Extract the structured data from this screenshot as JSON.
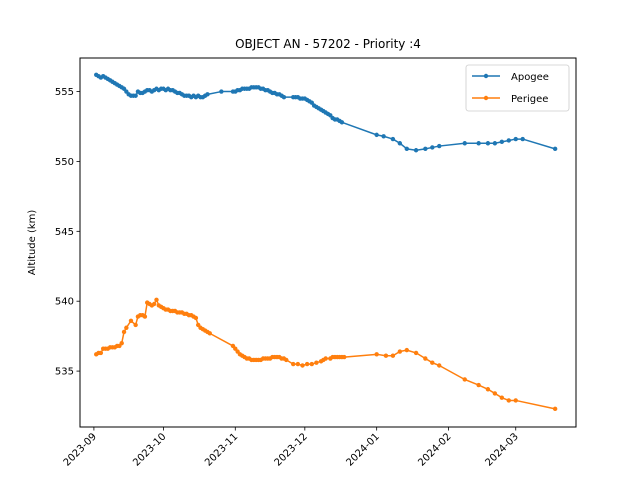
{
  "chart_data": {
    "type": "line",
    "title": "OBJECT AN - 57202 - Priority :4",
    "xlabel": "",
    "ylabel": "Altitude (km)",
    "xlim": [
      "2023-08-26",
      "2024-03-27"
    ],
    "ylim": [
      531.0,
      557.4
    ],
    "yticks": [
      535,
      540,
      545,
      550,
      555
    ],
    "xticks": [
      "2023-09-01",
      "2023-10-01",
      "2023-11-01",
      "2023-12-01",
      "2024-01-01",
      "2024-02-01",
      "2024-03-01"
    ],
    "xtick_labels": [
      "2023-09",
      "2023-10",
      "2023-11",
      "2023-12",
      "2024-01",
      "2024-02",
      "2024-03"
    ],
    "grid": false,
    "legend_position": "top-right",
    "series": [
      {
        "name": "Apogee",
        "color": "#1f77b4",
        "points": [
          [
            "2023-09-02",
            556.2
          ],
          [
            "2023-09-03",
            556.1
          ],
          [
            "2023-09-04",
            556.0
          ],
          [
            "2023-09-05",
            556.1
          ],
          [
            "2023-09-06",
            556.0
          ],
          [
            "2023-09-07",
            555.9
          ],
          [
            "2023-09-08",
            555.8
          ],
          [
            "2023-09-09",
            555.7
          ],
          [
            "2023-09-10",
            555.6
          ],
          [
            "2023-09-11",
            555.5
          ],
          [
            "2023-09-12",
            555.4
          ],
          [
            "2023-09-13",
            555.3
          ],
          [
            "2023-09-14",
            555.2
          ],
          [
            "2023-09-15",
            555.0
          ],
          [
            "2023-09-16",
            554.8
          ],
          [
            "2023-09-17",
            554.7
          ],
          [
            "2023-09-18",
            554.7
          ],
          [
            "2023-09-19",
            554.7
          ],
          [
            "2023-09-20",
            555.0
          ],
          [
            "2023-09-21",
            554.9
          ],
          [
            "2023-09-22",
            554.9
          ],
          [
            "2023-09-23",
            555.0
          ],
          [
            "2023-09-24",
            555.1
          ],
          [
            "2023-09-25",
            555.1
          ],
          [
            "2023-09-26",
            555.0
          ],
          [
            "2023-09-27",
            555.1
          ],
          [
            "2023-09-28",
            555.2
          ],
          [
            "2023-09-29",
            555.1
          ],
          [
            "2023-09-30",
            555.2
          ],
          [
            "2023-10-01",
            555.2
          ],
          [
            "2023-10-02",
            555.1
          ],
          [
            "2023-10-03",
            555.2
          ],
          [
            "2023-10-04",
            555.1
          ],
          [
            "2023-10-05",
            555.1
          ],
          [
            "2023-10-06",
            555.0
          ],
          [
            "2023-10-07",
            554.9
          ],
          [
            "2023-10-08",
            554.9
          ],
          [
            "2023-10-09",
            554.8
          ],
          [
            "2023-10-10",
            554.7
          ],
          [
            "2023-10-11",
            554.7
          ],
          [
            "2023-10-12",
            554.7
          ],
          [
            "2023-10-13",
            554.6
          ],
          [
            "2023-10-14",
            554.7
          ],
          [
            "2023-10-15",
            554.6
          ],
          [
            "2023-10-16",
            554.7
          ],
          [
            "2023-10-17",
            554.6
          ],
          [
            "2023-10-18",
            554.6
          ],
          [
            "2023-10-19",
            554.7
          ],
          [
            "2023-10-20",
            554.8
          ],
          [
            "2023-10-26",
            555.0
          ],
          [
            "2023-10-31",
            555.0
          ],
          [
            "2023-11-01",
            555.0
          ],
          [
            "2023-11-02",
            555.1
          ],
          [
            "2023-11-03",
            555.1
          ],
          [
            "2023-11-04",
            555.2
          ],
          [
            "2023-11-05",
            555.2
          ],
          [
            "2023-11-06",
            555.2
          ],
          [
            "2023-11-07",
            555.2
          ],
          [
            "2023-11-08",
            555.3
          ],
          [
            "2023-11-09",
            555.3
          ],
          [
            "2023-11-10",
            555.3
          ],
          [
            "2023-11-11",
            555.3
          ],
          [
            "2023-11-12",
            555.2
          ],
          [
            "2023-11-13",
            555.2
          ],
          [
            "2023-11-14",
            555.1
          ],
          [
            "2023-11-15",
            555.1
          ],
          [
            "2023-11-16",
            555.0
          ],
          [
            "2023-11-17",
            554.9
          ],
          [
            "2023-11-18",
            554.9
          ],
          [
            "2023-11-19",
            554.8
          ],
          [
            "2023-11-20",
            554.8
          ],
          [
            "2023-11-21",
            554.7
          ],
          [
            "2023-11-22",
            554.6
          ],
          [
            "2023-11-26",
            554.6
          ],
          [
            "2023-11-27",
            554.6
          ],
          [
            "2023-11-28",
            554.6
          ],
          [
            "2023-11-29",
            554.5
          ],
          [
            "2023-11-30",
            554.5
          ],
          [
            "2023-12-01",
            554.5
          ],
          [
            "2023-12-02",
            554.4
          ],
          [
            "2023-12-03",
            554.3
          ],
          [
            "2023-12-04",
            554.2
          ],
          [
            "2023-12-05",
            554.0
          ],
          [
            "2023-12-06",
            553.9
          ],
          [
            "2023-12-07",
            553.8
          ],
          [
            "2023-12-08",
            553.7
          ],
          [
            "2023-12-09",
            553.6
          ],
          [
            "2023-12-10",
            553.5
          ],
          [
            "2023-12-11",
            553.4
          ],
          [
            "2023-12-12",
            553.3
          ],
          [
            "2023-12-13",
            553.1
          ],
          [
            "2023-12-14",
            553.0
          ],
          [
            "2023-12-15",
            553.0
          ],
          [
            "2023-12-16",
            552.9
          ],
          [
            "2023-12-17",
            552.8
          ],
          [
            "2024-01-01",
            551.9
          ],
          [
            "2024-01-04",
            551.8
          ],
          [
            "2024-01-08",
            551.6
          ],
          [
            "2024-01-11",
            551.3
          ],
          [
            "2024-01-14",
            550.9
          ],
          [
            "2024-01-18",
            550.8
          ],
          [
            "2024-01-22",
            550.9
          ],
          [
            "2024-01-25",
            551.0
          ],
          [
            "2024-01-28",
            551.1
          ],
          [
            "2024-02-08",
            551.3
          ],
          [
            "2024-02-14",
            551.3
          ],
          [
            "2024-02-18",
            551.3
          ],
          [
            "2024-02-21",
            551.3
          ],
          [
            "2024-02-24",
            551.4
          ],
          [
            "2024-02-27",
            551.5
          ],
          [
            "2024-03-01",
            551.6
          ],
          [
            "2024-03-04",
            551.6
          ],
          [
            "2024-03-18",
            550.9
          ]
        ]
      },
      {
        "name": "Perigee",
        "color": "#ff7f0e",
        "points": [
          [
            "2023-09-02",
            536.2
          ],
          [
            "2023-09-03",
            536.3
          ],
          [
            "2023-09-04",
            536.3
          ],
          [
            "2023-09-05",
            536.6
          ],
          [
            "2023-09-06",
            536.6
          ],
          [
            "2023-09-07",
            536.6
          ],
          [
            "2023-09-08",
            536.7
          ],
          [
            "2023-09-09",
            536.7
          ],
          [
            "2023-09-10",
            536.7
          ],
          [
            "2023-09-11",
            536.8
          ],
          [
            "2023-09-12",
            536.8
          ],
          [
            "2023-09-13",
            537.0
          ],
          [
            "2023-09-14",
            537.8
          ],
          [
            "2023-09-15",
            538.1
          ],
          [
            "2023-09-17",
            538.6
          ],
          [
            "2023-09-19",
            538.3
          ],
          [
            "2023-09-20",
            538.9
          ],
          [
            "2023-09-21",
            539.0
          ],
          [
            "2023-09-22",
            539.0
          ],
          [
            "2023-09-23",
            538.9
          ],
          [
            "2023-09-24",
            539.9
          ],
          [
            "2023-09-25",
            539.8
          ],
          [
            "2023-09-26",
            539.7
          ],
          [
            "2023-09-27",
            539.8
          ],
          [
            "2023-09-28",
            540.1
          ],
          [
            "2023-09-29",
            539.7
          ],
          [
            "2023-09-30",
            539.6
          ],
          [
            "2023-10-01",
            539.5
          ],
          [
            "2023-10-02",
            539.4
          ],
          [
            "2023-10-03",
            539.4
          ],
          [
            "2023-10-04",
            539.3
          ],
          [
            "2023-10-05",
            539.3
          ],
          [
            "2023-10-06",
            539.3
          ],
          [
            "2023-10-07",
            539.2
          ],
          [
            "2023-10-08",
            539.2
          ],
          [
            "2023-10-09",
            539.2
          ],
          [
            "2023-10-10",
            539.1
          ],
          [
            "2023-10-11",
            539.1
          ],
          [
            "2023-10-12",
            539.0
          ],
          [
            "2023-10-13",
            539.0
          ],
          [
            "2023-10-14",
            538.9
          ],
          [
            "2023-10-15",
            538.8
          ],
          [
            "2023-10-16",
            538.3
          ],
          [
            "2023-10-17",
            538.1
          ],
          [
            "2023-10-18",
            538.0
          ],
          [
            "2023-10-19",
            537.9
          ],
          [
            "2023-10-20",
            537.8
          ],
          [
            "2023-10-21",
            537.7
          ],
          [
            "2023-10-31",
            536.8
          ],
          [
            "2023-11-01",
            536.6
          ],
          [
            "2023-11-02",
            536.4
          ],
          [
            "2023-11-03",
            536.2
          ],
          [
            "2023-11-04",
            536.1
          ],
          [
            "2023-11-05",
            536.0
          ],
          [
            "2023-11-06",
            535.9
          ],
          [
            "2023-11-07",
            535.9
          ],
          [
            "2023-11-08",
            535.8
          ],
          [
            "2023-11-09",
            535.8
          ],
          [
            "2023-11-10",
            535.8
          ],
          [
            "2023-11-11",
            535.8
          ],
          [
            "2023-11-12",
            535.8
          ],
          [
            "2023-11-13",
            535.9
          ],
          [
            "2023-11-14",
            535.9
          ],
          [
            "2023-11-15",
            535.9
          ],
          [
            "2023-11-16",
            535.9
          ],
          [
            "2023-11-17",
            536.0
          ],
          [
            "2023-11-18",
            536.0
          ],
          [
            "2023-11-19",
            536.0
          ],
          [
            "2023-11-20",
            536.0
          ],
          [
            "2023-11-21",
            535.9
          ],
          [
            "2023-11-22",
            535.9
          ],
          [
            "2023-11-23",
            535.8
          ],
          [
            "2023-11-26",
            535.5
          ],
          [
            "2023-11-28",
            535.5
          ],
          [
            "2023-11-30",
            535.4
          ],
          [
            "2023-12-02",
            535.5
          ],
          [
            "2023-12-04",
            535.5
          ],
          [
            "2023-12-06",
            535.6
          ],
          [
            "2023-12-08",
            535.7
          ],
          [
            "2023-12-09",
            535.8
          ],
          [
            "2023-12-10",
            535.9
          ],
          [
            "2023-12-12",
            535.9
          ],
          [
            "2023-12-13",
            536.0
          ],
          [
            "2023-12-14",
            536.0
          ],
          [
            "2023-12-15",
            536.0
          ],
          [
            "2023-12-16",
            536.0
          ],
          [
            "2023-12-17",
            536.0
          ],
          [
            "2023-12-18",
            536.0
          ],
          [
            "2024-01-01",
            536.2
          ],
          [
            "2024-01-05",
            536.1
          ],
          [
            "2024-01-08",
            536.1
          ],
          [
            "2024-01-11",
            536.4
          ],
          [
            "2024-01-14",
            536.5
          ],
          [
            "2024-01-18",
            536.3
          ],
          [
            "2024-01-22",
            535.9
          ],
          [
            "2024-01-25",
            535.6
          ],
          [
            "2024-01-28",
            535.4
          ],
          [
            "2024-02-08",
            534.4
          ],
          [
            "2024-02-14",
            534.0
          ],
          [
            "2024-02-18",
            533.7
          ],
          [
            "2024-02-21",
            533.4
          ],
          [
            "2024-02-24",
            533.1
          ],
          [
            "2024-02-27",
            532.9
          ],
          [
            "2024-03-01",
            532.9
          ],
          [
            "2024-03-18",
            532.3
          ]
        ]
      }
    ]
  }
}
